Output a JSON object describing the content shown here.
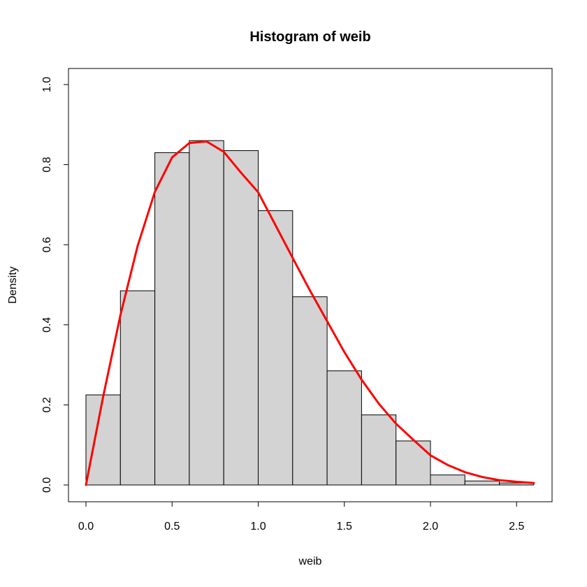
{
  "chart_data": {
    "type": "bar",
    "title": "Histogram of weib",
    "xlabel": "weib",
    "ylabel": "Density",
    "xlim": [
      0,
      2.6
    ],
    "ylim": [
      0,
      1.0
    ],
    "x_ticks": [
      "0.0",
      "0.5",
      "1.0",
      "1.5",
      "2.0",
      "2.5"
    ],
    "y_ticks": [
      "0.0",
      "0.2",
      "0.4",
      "0.6",
      "0.8",
      "1.0"
    ],
    "grid": false,
    "bars": {
      "fill_color": "#d3d3d3",
      "edge_color": "#000000",
      "bin_edges": [
        0.0,
        0.2,
        0.4,
        0.6,
        0.8,
        1.0,
        1.2,
        1.4,
        1.6,
        1.8,
        2.0,
        2.2,
        2.4,
        2.6
      ],
      "values": [
        0.225,
        0.485,
        0.83,
        0.86,
        0.835,
        0.685,
        0.47,
        0.285,
        0.175,
        0.11,
        0.025,
        0.01,
        0.005
      ]
    },
    "curve": {
      "color": "#ff0000",
      "x": [
        0.0,
        0.1,
        0.2,
        0.3,
        0.4,
        0.5,
        0.6,
        0.7,
        0.8,
        0.9,
        1.0,
        1.1,
        1.2,
        1.3,
        1.4,
        1.5,
        1.6,
        1.7,
        1.8,
        1.9,
        2.0,
        2.1,
        2.2,
        2.3,
        2.4,
        2.5,
        2.6
      ],
      "y": [
        0.0,
        0.221,
        0.424,
        0.597,
        0.732,
        0.818,
        0.854,
        0.858,
        0.832,
        0.78,
        0.731,
        0.649,
        0.567,
        0.486,
        0.409,
        0.332,
        0.263,
        0.203,
        0.153,
        0.113,
        0.074,
        0.05,
        0.032,
        0.02,
        0.012,
        0.008,
        0.005
      ]
    }
  }
}
